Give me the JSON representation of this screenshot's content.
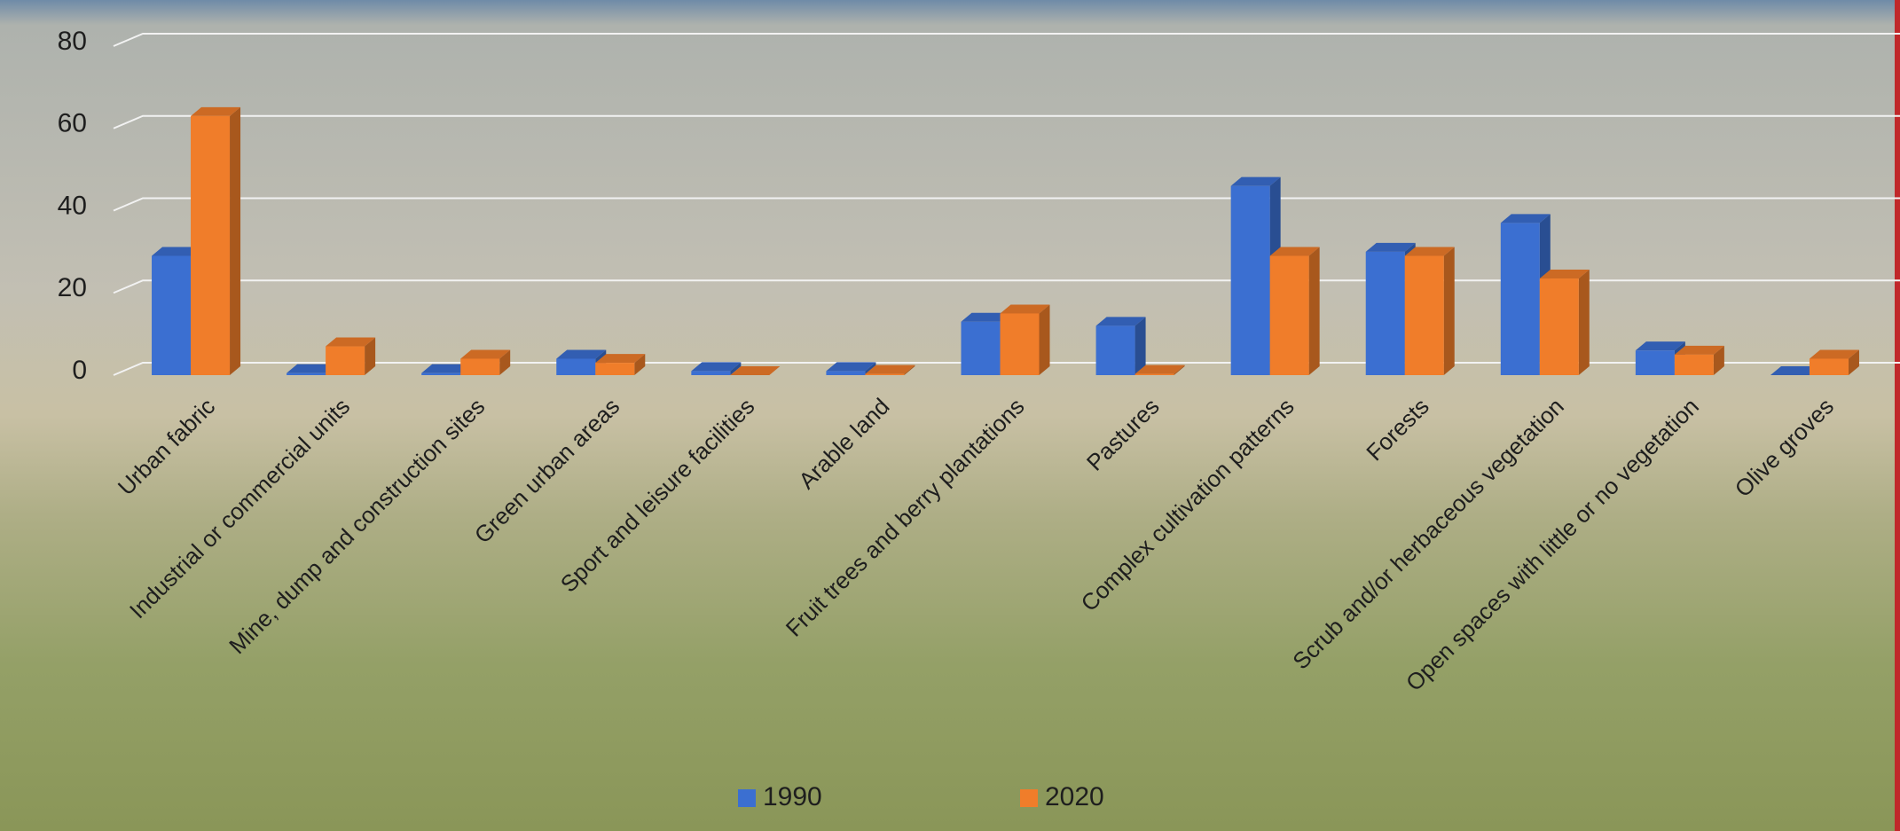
{
  "chart_data": {
    "type": "bar3d",
    "categories": [
      "Urban fabric",
      "Industrial or commercial units",
      "Mine, dump and construction sites",
      "Green urban areas",
      "Sport and leisure facilities",
      "Arable land",
      "Fruit trees and berry plantations",
      "Pastures",
      "Complex cultivation patterns",
      "Forests",
      "Scrub and/or herbaceous vegetation",
      "Open spaces with little or no vegetation",
      "Olive groves"
    ],
    "series": [
      {
        "name": "1990",
        "color": "#3b6fd1",
        "values": [
          29,
          0.5,
          0.5,
          4,
          1,
          1,
          13,
          12,
          46,
          30,
          37,
          6,
          0
        ]
      },
      {
        "name": "2020",
        "color": "#f07d2a",
        "values": [
          63,
          7,
          4,
          3,
          0,
          0.3,
          15,
          0.3,
          29,
          29,
          23.5,
          5,
          4
        ]
      }
    ],
    "ylim": [
      0,
      80
    ],
    "yticks": [
      0,
      20,
      40,
      60,
      80
    ],
    "grid": true,
    "legend": "bottom"
  }
}
